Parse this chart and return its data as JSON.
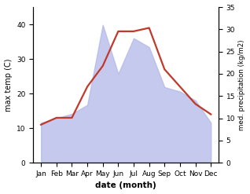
{
  "months": [
    "Jan",
    "Feb",
    "Mar",
    "Apr",
    "May",
    "Jun",
    "Jul",
    "Aug",
    "Sep",
    "Oct",
    "Nov",
    "Dec"
  ],
  "temperature": [
    11,
    13,
    13,
    22,
    28,
    38,
    38,
    39,
    27,
    22,
    17,
    14
  ],
  "precipitation": [
    9,
    10,
    11,
    13,
    31,
    20,
    28,
    26,
    17,
    16,
    14,
    9
  ],
  "temp_color": "#c0392b",
  "precip_color": "#b0b8e8",
  "xlabel": "date (month)",
  "ylabel_left": "max temp (C)",
  "ylabel_right": "med. precipitation (kg/m2)",
  "ylim_left": [
    0,
    45
  ],
  "ylim_right": [
    0,
    35
  ],
  "yticks_left": [
    0,
    10,
    20,
    30,
    40
  ],
  "yticks_right": [
    0,
    5,
    10,
    15,
    20,
    25,
    30,
    35
  ],
  "bg_color": "#ffffff",
  "temp_linewidth": 1.6
}
